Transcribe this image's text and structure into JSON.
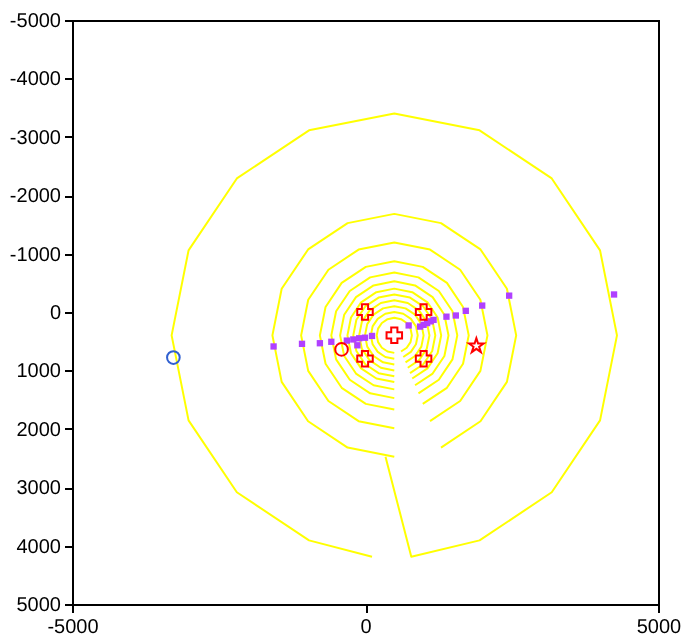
{
  "chart_data": {
    "type": "scatter",
    "xlim": [
      -5000,
      5000
    ],
    "ylim": [
      5000,
      -5000
    ],
    "xticks": [
      -5000,
      0,
      5000
    ],
    "yticks": [
      -5000,
      -4000,
      -3000,
      -2000,
      -1000,
      0,
      1000,
      2000,
      3000,
      4000,
      5000
    ],
    "grid": false,
    "series": [
      {
        "type": "line",
        "color": "#ffff00",
        "x": [
          120,
          -955,
          -2187,
          -3011,
          -3300,
          -3011,
          -2187,
          -955,
          500,
          1955,
          3187,
          4011,
          4300,
          4011,
          3187,
          1955,
          790,
          350
        ],
        "values": [
          4190,
          3911,
          3087,
          1855,
          400,
          -1055,
          -2287,
          -3111,
          -3400,
          -3111,
          -2287,
          -1055,
          400,
          1855,
          3087,
          3911,
          4190,
          2480
        ]
      },
      {
        "type": "line",
        "color": "#ffff00",
        "x": [
          500,
          -297,
          -971,
          -1422,
          -1580,
          -1422,
          -971,
          -297,
          500,
          1297,
          1971,
          2422,
          2580,
          2422,
          1971,
          1297
        ],
        "values": [
          2480,
          2322,
          1871,
          1197,
          400,
          -397,
          -1071,
          -1522,
          -1680,
          -1522,
          -1071,
          -397,
          400,
          1197,
          1871,
          2322
        ]
      },
      {
        "type": "line",
        "color": "#ffff00",
        "x": [
          500,
          -109,
          -624,
          -969,
          -1090,
          -969,
          -624,
          -109,
          500,
          1109,
          1624,
          1969,
          2090,
          1969,
          1624,
          1109
        ],
        "values": [
          1990,
          1869,
          1524,
          1009,
          400,
          -209,
          -724,
          -1069,
          -1190,
          -1069,
          -724,
          -209,
          400,
          1009,
          1524,
          1869
        ]
      },
      {
        "type": "line",
        "color": "#ffff00",
        "x": [
          500,
          14,
          -398,
          -673,
          -770,
          -673,
          -398,
          14,
          500,
          986,
          1398,
          1673,
          1770,
          1673,
          1398,
          986
        ],
        "values": [
          1670,
          1573,
          1298,
          886,
          400,
          -86,
          -498,
          -773,
          -870,
          -773,
          -498,
          -86,
          400,
          886,
          1298,
          1573
        ]
      },
      {
        "type": "line",
        "color": "#ffff00",
        "x": [
          500,
          88,
          -260,
          -493,
          -575,
          -493,
          -260,
          88,
          500,
          912,
          1260,
          1493,
          1575,
          1493,
          1260,
          912
        ],
        "values": [
          1475,
          1393,
          1160,
          812,
          400,
          -12,
          -360,
          -593,
          -675,
          -593,
          -360,
          -12,
          400,
          812,
          1160,
          1393
        ]
      },
      {
        "type": "line",
        "color": "#ffff00",
        "x": [
          500,
          146,
          -154,
          -355,
          -425,
          -355,
          -154,
          146,
          500,
          854,
          1154,
          1355,
          1425,
          1355,
          1154,
          854
        ],
        "values": [
          1325,
          1255,
          1054,
          754,
          400,
          46,
          -254,
          -455,
          -525,
          -455,
          -254,
          46,
          400,
          754,
          1054,
          1255
        ]
      },
      {
        "type": "line",
        "color": "#ffff00",
        "x": [
          500,
          194,
          -66,
          -239,
          -300,
          -239,
          -66,
          194,
          500,
          806,
          1066,
          1239,
          1300,
          1239,
          1066,
          806
        ],
        "values": [
          1200,
          1139,
          966,
          706,
          400,
          94,
          -166,
          -339,
          -400,
          -339,
          -166,
          94,
          400,
          706,
          966,
          1139
        ]
      },
      {
        "type": "line",
        "color": "#ffff00",
        "x": [
          500,
          232,
          5,
          -147,
          -200,
          -147,
          5,
          232,
          500,
          768,
          995,
          1147,
          1200,
          1147,
          995,
          768
        ],
        "values": [
          1100,
          1047,
          895,
          668,
          400,
          132,
          -95,
          -247,
          -300,
          -247,
          -95,
          132,
          400,
          668,
          895,
          1047
        ]
      },
      {
        "type": "line",
        "color": "#ffff00",
        "x": [
          500,
          270,
          76,
          -54,
          -100,
          -54,
          76,
          270,
          500,
          730,
          924,
          1054,
          1100,
          1054,
          924,
          730
        ],
        "values": [
          1000,
          954,
          824,
          630,
          400,
          170,
          -24,
          -154,
          -200,
          -154,
          -24,
          170,
          400,
          630,
          824,
          954
        ]
      },
      {
        "type": "line",
        "color": "#ffff00",
        "x": [
          500,
          308,
          146,
          38,
          0,
          38,
          146,
          308,
          500,
          692,
          854,
          962,
          1000,
          962,
          854,
          692
        ],
        "values": [
          900,
          862,
          754,
          592,
          400,
          208,
          46,
          -62,
          -100,
          -62,
          46,
          208,
          400,
          592,
          754,
          862
        ]
      },
      {
        "type": "line",
        "color": "#ffff00",
        "x": [
          500,
          347,
          217,
          130,
          100,
          130,
          217,
          347,
          500,
          653,
          783,
          870,
          900,
          870,
          783,
          653
        ],
        "values": [
          800,
          770,
          683,
          553,
          400,
          247,
          117,
          30,
          0,
          30,
          117,
          247,
          400,
          553,
          683,
          770
        ]
      },
      {
        "type": "line",
        "color": "#ffff00",
        "x": [
          500,
          385,
          288,
          223,
          200,
          223,
          288,
          385,
          500,
          615,
          712,
          777,
          800,
          777,
          712,
          615
        ],
        "values": [
          700,
          677,
          612,
          515,
          400,
          285,
          188,
          123,
          100,
          123,
          188,
          285,
          400,
          515,
          612,
          677
        ]
      },
      {
        "color": "#b040ff",
        "marker": "square",
        "x": [
          -1560,
          -1075,
          -770,
          -575,
          -130,
          -310,
          -200,
          -100,
          0,
          120,
          745,
          940,
          1000,
          1060,
          1120,
          1170,
          1390,
          1550,
          1720,
          2000,
          2460,
          4250
        ],
        "values": [
          590,
          545,
          535,
          510,
          570,
          490,
          470,
          450,
          440,
          410,
          230,
          250,
          220,
          190,
          160,
          135,
          80,
          60,
          -20,
          -110,
          -280,
          -300
        ]
      },
      {
        "color": "#ff0000",
        "marker": "cross",
        "x": [
          0,
          1000,
          0,
          1000,
          500
        ],
        "values": [
          0,
          0,
          800,
          800,
          400
        ]
      },
      {
        "color": "#ff0000",
        "marker": "star",
        "x": [
          1900
        ],
        "values": [
          580
        ]
      },
      {
        "color": "#ff0000",
        "marker": "circle",
        "x": [
          -400
        ],
        "values": [
          640
        ]
      },
      {
        "color": "#3060d0",
        "marker": "circle",
        "x": [
          -3270
        ],
        "values": [
          780
        ]
      }
    ]
  }
}
